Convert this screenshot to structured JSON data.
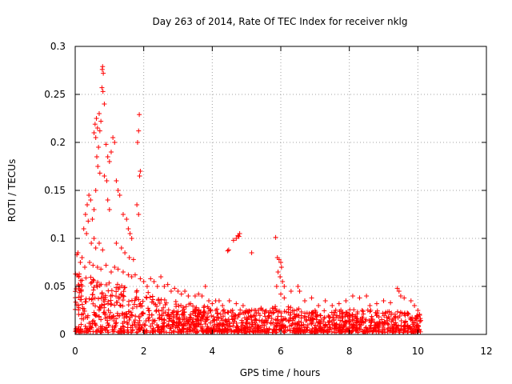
{
  "chart_data": {
    "type": "scatter",
    "title": "Day 263 of 2014, Rate Of TEC Index for receiver nklg",
    "xlabel": "GPS time / hours",
    "ylabel": "ROTI / TECUs",
    "xlim": [
      0,
      12
    ],
    "ylim": [
      0,
      0.3
    ],
    "x_ticks": [
      0,
      2,
      4,
      6,
      8,
      10,
      12
    ],
    "y_ticks": [
      0,
      0.05,
      0.1,
      0.15,
      0.2,
      0.25,
      0.3
    ],
    "x_tick_labels": [
      "0",
      "2",
      "4",
      "6",
      "8",
      "10",
      "12"
    ],
    "y_tick_labels": [
      "0",
      "0.05",
      "0.1",
      "0.15",
      "0.2",
      "0.25",
      "0.3"
    ],
    "grid": true,
    "marker": "+",
    "color": "#ff0000",
    "series": [
      {
        "name": "ROTI",
        "points": [
          [
            0.8,
            0.279
          ],
          [
            0.79,
            0.276
          ],
          [
            0.82,
            0.272
          ],
          [
            0.78,
            0.257
          ],
          [
            0.81,
            0.253
          ],
          [
            0.85,
            0.24
          ],
          [
            0.7,
            0.23
          ],
          [
            0.62,
            0.225
          ],
          [
            0.58,
            0.219
          ],
          [
            0.65,
            0.215
          ],
          [
            0.55,
            0.21
          ],
          [
            0.6,
            0.205
          ],
          [
            0.75,
            0.222
          ],
          [
            0.72,
            0.212
          ],
          [
            1.1,
            0.205
          ],
          [
            1.15,
            0.2
          ],
          [
            1.05,
            0.19
          ],
          [
            1.0,
            0.18
          ],
          [
            0.9,
            0.198
          ],
          [
            0.95,
            0.185
          ],
          [
            0.68,
            0.195
          ],
          [
            0.63,
            0.185
          ],
          [
            0.66,
            0.175
          ],
          [
            0.72,
            0.168
          ],
          [
            1.87,
            0.229
          ],
          [
            1.85,
            0.212
          ],
          [
            1.82,
            0.2
          ],
          [
            1.9,
            0.17
          ],
          [
            1.88,
            0.165
          ],
          [
            0.85,
            0.165
          ],
          [
            0.92,
            0.16
          ],
          [
            1.2,
            0.16
          ],
          [
            1.25,
            0.15
          ],
          [
            1.3,
            0.145
          ],
          [
            0.4,
            0.145
          ],
          [
            0.45,
            0.14
          ],
          [
            0.35,
            0.135
          ],
          [
            0.6,
            0.15
          ],
          [
            0.55,
            0.13
          ],
          [
            0.3,
            0.125
          ],
          [
            0.38,
            0.118
          ],
          [
            0.5,
            0.12
          ],
          [
            0.95,
            0.14
          ],
          [
            1.0,
            0.13
          ],
          [
            1.4,
            0.125
          ],
          [
            1.5,
            0.12
          ],
          [
            1.55,
            0.11
          ],
          [
            1.6,
            0.105
          ],
          [
            1.65,
            0.1
          ],
          [
            1.8,
            0.135
          ],
          [
            1.85,
            0.125
          ],
          [
            0.25,
            0.11
          ],
          [
            0.33,
            0.105
          ],
          [
            0.47,
            0.095
          ],
          [
            0.55,
            0.1
          ],
          [
            0.6,
            0.09
          ],
          [
            0.7,
            0.095
          ],
          [
            0.8,
            0.088
          ],
          [
            1.2,
            0.095
          ],
          [
            1.35,
            0.09
          ],
          [
            1.45,
            0.085
          ],
          [
            1.58,
            0.08
          ],
          [
            1.7,
            0.078
          ],
          [
            0.05,
            0.083
          ],
          [
            0.08,
            0.085
          ],
          [
            0.15,
            0.075
          ],
          [
            0.2,
            0.08
          ],
          [
            0.28,
            0.07
          ],
          [
            0.42,
            0.075
          ],
          [
            0.52,
            0.072
          ],
          [
            0.65,
            0.07
          ],
          [
            0.75,
            0.068
          ],
          [
            0.9,
            0.072
          ],
          [
            1.05,
            0.065
          ],
          [
            1.15,
            0.07
          ],
          [
            1.25,
            0.068
          ],
          [
            1.4,
            0.065
          ],
          [
            1.55,
            0.062
          ],
          [
            1.65,
            0.06
          ],
          [
            1.75,
            0.062
          ],
          [
            1.9,
            0.058
          ],
          [
            2.0,
            0.055
          ],
          [
            2.1,
            0.05
          ],
          [
            2.2,
            0.058
          ],
          [
            2.3,
            0.055
          ],
          [
            2.4,
            0.05
          ],
          [
            2.5,
            0.06
          ],
          [
            2.6,
            0.05
          ],
          [
            2.7,
            0.052
          ],
          [
            2.8,
            0.045
          ],
          [
            2.9,
            0.048
          ],
          [
            3.0,
            0.045
          ],
          [
            3.1,
            0.042
          ],
          [
            3.2,
            0.045
          ],
          [
            3.3,
            0.04
          ],
          [
            3.5,
            0.04
          ],
          [
            3.6,
            0.042
          ],
          [
            3.7,
            0.04
          ],
          [
            3.8,
            0.05
          ],
          [
            3.9,
            0.035
          ],
          [
            4.0,
            0.032
          ],
          [
            4.1,
            0.035
          ],
          [
            4.2,
            0.035
          ],
          [
            4.3,
            0.03
          ],
          [
            4.5,
            0.035
          ],
          [
            4.7,
            0.032
          ],
          [
            4.9,
            0.03
          ],
          [
            4.48,
            0.088
          ],
          [
            4.45,
            0.087
          ],
          [
            4.62,
            0.098
          ],
          [
            4.7,
            0.1
          ],
          [
            4.75,
            0.103
          ],
          [
            4.8,
            0.105
          ],
          [
            4.78,
            0.102
          ],
          [
            5.15,
            0.085
          ],
          [
            5.85,
            0.101
          ],
          [
            5.9,
            0.08
          ],
          [
            5.95,
            0.078
          ],
          [
            6.0,
            0.075
          ],
          [
            6.02,
            0.07
          ],
          [
            5.92,
            0.065
          ],
          [
            5.98,
            0.06
          ],
          [
            6.05,
            0.055
          ],
          [
            6.1,
            0.05
          ],
          [
            5.88,
            0.05
          ],
          [
            6.0,
            0.042
          ],
          [
            6.1,
            0.038
          ],
          [
            6.3,
            0.045
          ],
          [
            6.5,
            0.05
          ],
          [
            6.55,
            0.045
          ],
          [
            6.7,
            0.035
          ],
          [
            6.9,
            0.038
          ],
          [
            7.1,
            0.03
          ],
          [
            7.3,
            0.035
          ],
          [
            7.5,
            0.03
          ],
          [
            7.7,
            0.032
          ],
          [
            7.9,
            0.035
          ],
          [
            8.1,
            0.04
          ],
          [
            8.3,
            0.038
          ],
          [
            8.5,
            0.04
          ],
          [
            8.6,
            0.03
          ],
          [
            8.8,
            0.032
          ],
          [
            9.0,
            0.035
          ],
          [
            9.2,
            0.033
          ],
          [
            9.4,
            0.048
          ],
          [
            9.45,
            0.045
          ],
          [
            9.5,
            0.04
          ],
          [
            9.6,
            0.038
          ],
          [
            9.8,
            0.035
          ],
          [
            9.9,
            0.03
          ],
          [
            10.0,
            0.025
          ],
          [
            10.05,
            0.02
          ],
          [
            0.1,
            0.06
          ],
          [
            0.12,
            0.05
          ],
          [
            0.18,
            0.045
          ]
        ],
        "dense_band": {
          "x_range": [
            0,
            10.1
          ],
          "y_floor": 0.002,
          "y_ceiling_profile": [
            [
              0,
              0.065
            ],
            [
              0.5,
              0.06
            ],
            [
              1.0,
              0.055
            ],
            [
              1.5,
              0.05
            ],
            [
              2.0,
              0.045
            ],
            [
              3.0,
              0.035
            ],
            [
              4.0,
              0.028
            ],
            [
              5.0,
              0.026
            ],
            [
              6.0,
              0.03
            ],
            [
              7.0,
              0.025
            ],
            [
              8.0,
              0.026
            ],
            [
              9.0,
              0.025
            ],
            [
              10.1,
              0.022
            ]
          ]
        }
      }
    ]
  }
}
